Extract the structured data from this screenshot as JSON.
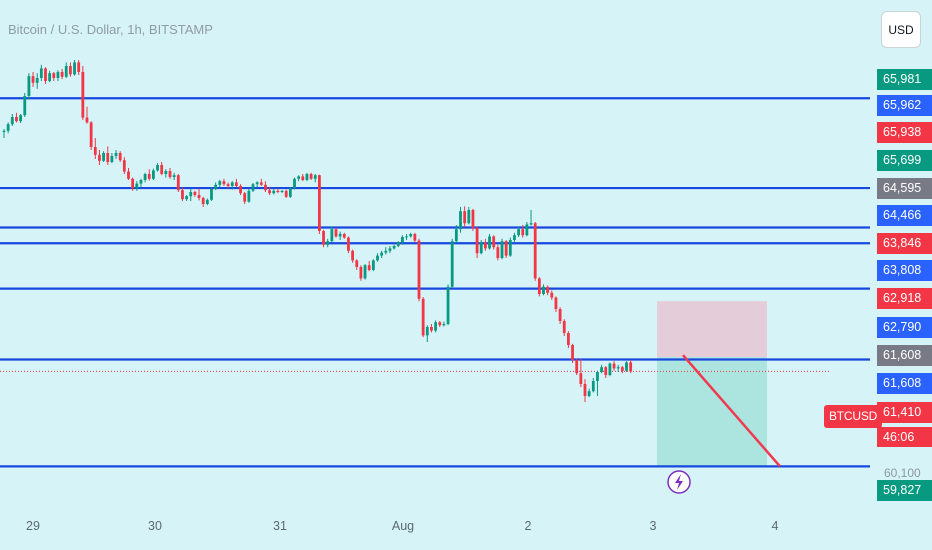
{
  "header": {
    "title": "Bitcoin / U.S. Dollar, 1h, BITSTAMP"
  },
  "toolbar": {
    "currency": "USD"
  },
  "symbol_tag": "BTCUSD",
  "countdown": "46:06",
  "colors": {
    "background": "#d6f3f8",
    "up": "#089981",
    "down": "#f23645",
    "level_line": "#1848e0",
    "stop_zone": "#e6c4d2",
    "target_zone": "#a4e0dc",
    "trend_line": "#ef3a4f",
    "lightning_badge": "#7b2fbf"
  },
  "price_axis": {
    "labels": [
      {
        "text": "65,981",
        "bg": "#089981"
      },
      {
        "text": "65,962",
        "bg": "#2962ff"
      },
      {
        "text": "65,938",
        "bg": "#f23645"
      },
      {
        "text": "65,699",
        "bg": "#089981"
      },
      {
        "text": "64,595",
        "bg": "#787b86"
      },
      {
        "text": "64,466",
        "bg": "#2962ff"
      },
      {
        "text": "63,846",
        "bg": "#f23645"
      },
      {
        "text": "63,808",
        "bg": "#2962ff"
      },
      {
        "text": "62,918",
        "bg": "#f23645"
      },
      {
        "text": "62,790",
        "bg": "#2962ff"
      },
      {
        "text": "61,608",
        "bg": "#787b86"
      },
      {
        "text": "61,608",
        "bg": "#2962ff"
      },
      {
        "text": "61,410",
        "bg": "#f23645"
      },
      {
        "text": "59,827",
        "bg": "#089981"
      }
    ],
    "ghost_tick": "60,100"
  },
  "chart_data": {
    "type": "candlestick",
    "title": "Bitcoin / U.S. Dollar, 1h, BITSTAMP",
    "x_ticks": [
      "29",
      "30",
      "31",
      "Aug",
      "2",
      "3",
      "4"
    ],
    "y_range": [
      59100,
      67600
    ],
    "horizontal_levels": [
      65962,
      64466,
      63808,
      63546,
      62790,
      61608,
      59827
    ],
    "last_price": 61410,
    "short_position": {
      "entry": 61650,
      "stop": 62580,
      "target": 59827
    },
    "projection": {
      "from": 61680,
      "to": 59827
    },
    "candles": [
      [
        65400,
        65450,
        65300,
        65420
      ],
      [
        65420,
        65560,
        65380,
        65530
      ],
      [
        65530,
        65700,
        65500,
        65650
      ],
      [
        65650,
        65720,
        65560,
        65580
      ],
      [
        65580,
        65700,
        65550,
        65680
      ],
      [
        65680,
        66050,
        65650,
        66000
      ],
      [
        66000,
        66380,
        65950,
        66330
      ],
      [
        66330,
        66400,
        66150,
        66220
      ],
      [
        66220,
        66380,
        66120,
        66300
      ],
      [
        66300,
        66520,
        66250,
        66460
      ],
      [
        66460,
        66480,
        66200,
        66250
      ],
      [
        66250,
        66420,
        66230,
        66380
      ],
      [
        66380,
        66400,
        66250,
        66300
      ],
      [
        66300,
        66430,
        66250,
        66400
      ],
      [
        66400,
        66450,
        66280,
        66320
      ],
      [
        66320,
        66560,
        66300,
        66500
      ],
      [
        66500,
        66560,
        66320,
        66360
      ],
      [
        66360,
        66600,
        66340,
        66560
      ],
      [
        66560,
        66600,
        66350,
        66400
      ],
      [
        66400,
        66500,
        65600,
        65640
      ],
      [
        65640,
        65820,
        65540,
        65560
      ],
      [
        65560,
        65580,
        65100,
        65150
      ],
      [
        65150,
        65300,
        64950,
        65020
      ],
      [
        65020,
        65100,
        64850,
        64920
      ],
      [
        64920,
        65080,
        64900,
        65050
      ],
      [
        65050,
        65160,
        64850,
        64900
      ],
      [
        64900,
        65050,
        64880,
        65000
      ],
      [
        65000,
        65100,
        64950,
        65050
      ],
      [
        65050,
        65080,
        64900,
        64930
      ],
      [
        64930,
        64980,
        64700,
        64740
      ],
      [
        64740,
        64800,
        64600,
        64620
      ],
      [
        64620,
        64640,
        64420,
        64460
      ],
      [
        64460,
        64580,
        64420,
        64540
      ],
      [
        64540,
        64620,
        64480,
        64600
      ],
      [
        64600,
        64720,
        64560,
        64700
      ],
      [
        64700,
        64780,
        64590,
        64620
      ],
      [
        64620,
        64790,
        64600,
        64760
      ],
      [
        64760,
        64880,
        64740,
        64850
      ],
      [
        64850,
        64900,
        64680,
        64700
      ],
      [
        64700,
        64780,
        64640,
        64750
      ],
      [
        64750,
        64800,
        64620,
        64650
      ],
      [
        64650,
        64720,
        64600,
        64680
      ],
      [
        64680,
        64700,
        64400,
        64430
      ],
      [
        64430,
        64480,
        64250,
        64280
      ],
      [
        64280,
        64350,
        64250,
        64330
      ],
      [
        64330,
        64450,
        64250,
        64400
      ],
      [
        64400,
        64420,
        64320,
        64350
      ],
      [
        64350,
        64460,
        64260,
        64300
      ],
      [
        64300,
        64320,
        64150,
        64200
      ],
      [
        64200,
        64290,
        64180,
        64270
      ],
      [
        64270,
        64480,
        64250,
        64450
      ],
      [
        64450,
        64560,
        64430,
        64520
      ],
      [
        64520,
        64600,
        64480,
        64580
      ],
      [
        64580,
        64620,
        64500,
        64530
      ],
      [
        64530,
        64560,
        64460,
        64500
      ],
      [
        64500,
        64580,
        64440,
        64560
      ],
      [
        64560,
        64620,
        64480,
        64500
      ],
      [
        64500,
        64530,
        64350,
        64380
      ],
      [
        64380,
        64400,
        64200,
        64240
      ],
      [
        64240,
        64450,
        64220,
        64420
      ],
      [
        64420,
        64550,
        64400,
        64530
      ],
      [
        64530,
        64580,
        64480,
        64560
      ],
      [
        64560,
        64620,
        64500,
        64520
      ],
      [
        64520,
        64580,
        64400,
        64430
      ],
      [
        64430,
        64480,
        64350,
        64380
      ],
      [
        64380,
        64450,
        64360,
        64420
      ],
      [
        64420,
        64460,
        64380,
        64400
      ],
      [
        64400,
        64430,
        64380,
        64420
      ],
      [
        64420,
        64440,
        64300,
        64320
      ],
      [
        64320,
        64480,
        64300,
        64460
      ],
      [
        64460,
        64640,
        64440,
        64620
      ],
      [
        64620,
        64680,
        64580,
        64660
      ],
      [
        64660,
        64700,
        64580,
        64600
      ],
      [
        64600,
        64720,
        64580,
        64700
      ],
      [
        64700,
        64720,
        64600,
        64620
      ],
      [
        64620,
        64700,
        64560,
        64680
      ],
      [
        64680,
        64690,
        63700,
        63750
      ],
      [
        63750,
        63770,
        63480,
        63520
      ],
      [
        63520,
        63620,
        63480,
        63580
      ],
      [
        63580,
        63820,
        63560,
        63780
      ],
      [
        63780,
        63800,
        63640,
        63660
      ],
      [
        63660,
        63740,
        63600,
        63700
      ],
      [
        63700,
        63720,
        63620,
        63640
      ],
      [
        63640,
        63660,
        63380,
        63420
      ],
      [
        63420,
        63440,
        63220,
        63260
      ],
      [
        63260,
        63280,
        63100,
        63150
      ],
      [
        63150,
        63180,
        62920,
        62960
      ],
      [
        62960,
        63200,
        62940,
        63180
      ],
      [
        63180,
        63250,
        63080,
        63100
      ],
      [
        63100,
        63280,
        63080,
        63260
      ],
      [
        63260,
        63380,
        63240,
        63340
      ],
      [
        63340,
        63420,
        63300,
        63390
      ],
      [
        63390,
        63480,
        63360,
        63420
      ],
      [
        63420,
        63500,
        63380,
        63460
      ],
      [
        63460,
        63520,
        63440,
        63500
      ],
      [
        63500,
        63580,
        63480,
        63560
      ],
      [
        63560,
        63680,
        63520,
        63650
      ],
      [
        63650,
        63700,
        63600,
        63660
      ],
      [
        63660,
        63720,
        63640,
        63700
      ],
      [
        63700,
        63720,
        63560,
        63590
      ],
      [
        63590,
        63620,
        62580,
        62620
      ],
      [
        62620,
        62650,
        61980,
        62010
      ],
      [
        62010,
        62180,
        61900,
        62150
      ],
      [
        62150,
        62200,
        62060,
        62090
      ],
      [
        62090,
        62260,
        62060,
        62230
      ],
      [
        62230,
        62250,
        62150,
        62180
      ],
      [
        62180,
        62240,
        62160,
        62200
      ],
      [
        62200,
        62860,
        62180,
        62820
      ],
      [
        62820,
        63620,
        62800,
        63580
      ],
      [
        63580,
        63850,
        63550,
        63780
      ],
      [
        63780,
        64150,
        63720,
        64080
      ],
      [
        64080,
        64160,
        63820,
        63880
      ],
      [
        63880,
        64150,
        63860,
        64100
      ],
      [
        64100,
        64120,
        63750,
        63800
      ],
      [
        63800,
        63820,
        63300,
        63380
      ],
      [
        63380,
        63600,
        63360,
        63560
      ],
      [
        63560,
        63620,
        63420,
        63460
      ],
      [
        63460,
        63700,
        63440,
        63660
      ],
      [
        63660,
        63680,
        63440,
        63480
      ],
      [
        63480,
        63520,
        63260,
        63300
      ],
      [
        63300,
        63620,
        63280,
        63580
      ],
      [
        63580,
        63600,
        63300,
        63340
      ],
      [
        63340,
        63640,
        63320,
        63600
      ],
      [
        63600,
        63720,
        63560,
        63680
      ],
      [
        63680,
        63820,
        63650,
        63780
      ],
      [
        63780,
        63850,
        63640,
        63680
      ],
      [
        63680,
        63900,
        63660,
        63860
      ],
      [
        63860,
        64100,
        63840,
        63880
      ],
      [
        63880,
        63900,
        62920,
        62960
      ],
      [
        62960,
        62980,
        62660,
        62700
      ],
      [
        62700,
        62860,
        62680,
        62820
      ],
      [
        62820,
        62840,
        62680,
        62720
      ],
      [
        62720,
        62760,
        62600,
        62640
      ],
      [
        62640,
        62660,
        62400,
        62450
      ],
      [
        62450,
        62480,
        62200,
        62250
      ],
      [
        62250,
        62280,
        62000,
        62050
      ],
      [
        62050,
        62080,
        61800,
        61850
      ],
      [
        61850,
        61870,
        61550,
        61600
      ],
      [
        61600,
        61620,
        61350,
        61380
      ],
      [
        61380,
        61620,
        61150,
        61200
      ],
      [
        61200,
        61280,
        60900,
        61000
      ],
      [
        61000,
        61120,
        60980,
        61080
      ],
      [
        61080,
        61300,
        61060,
        61250
      ],
      [
        61250,
        61420,
        61000,
        61400
      ],
      [
        61400,
        61520,
        61380,
        61480
      ],
      [
        61480,
        61500,
        61300,
        61350
      ],
      [
        61350,
        61560,
        61330,
        61540
      ],
      [
        61540,
        61580,
        61420,
        61460
      ],
      [
        61460,
        61520,
        61400,
        61480
      ],
      [
        61480,
        61500,
        61380,
        61420
      ],
      [
        61420,
        61580,
        61400,
        61560
      ],
      [
        61560,
        61600,
        61380,
        61410
      ]
    ]
  }
}
